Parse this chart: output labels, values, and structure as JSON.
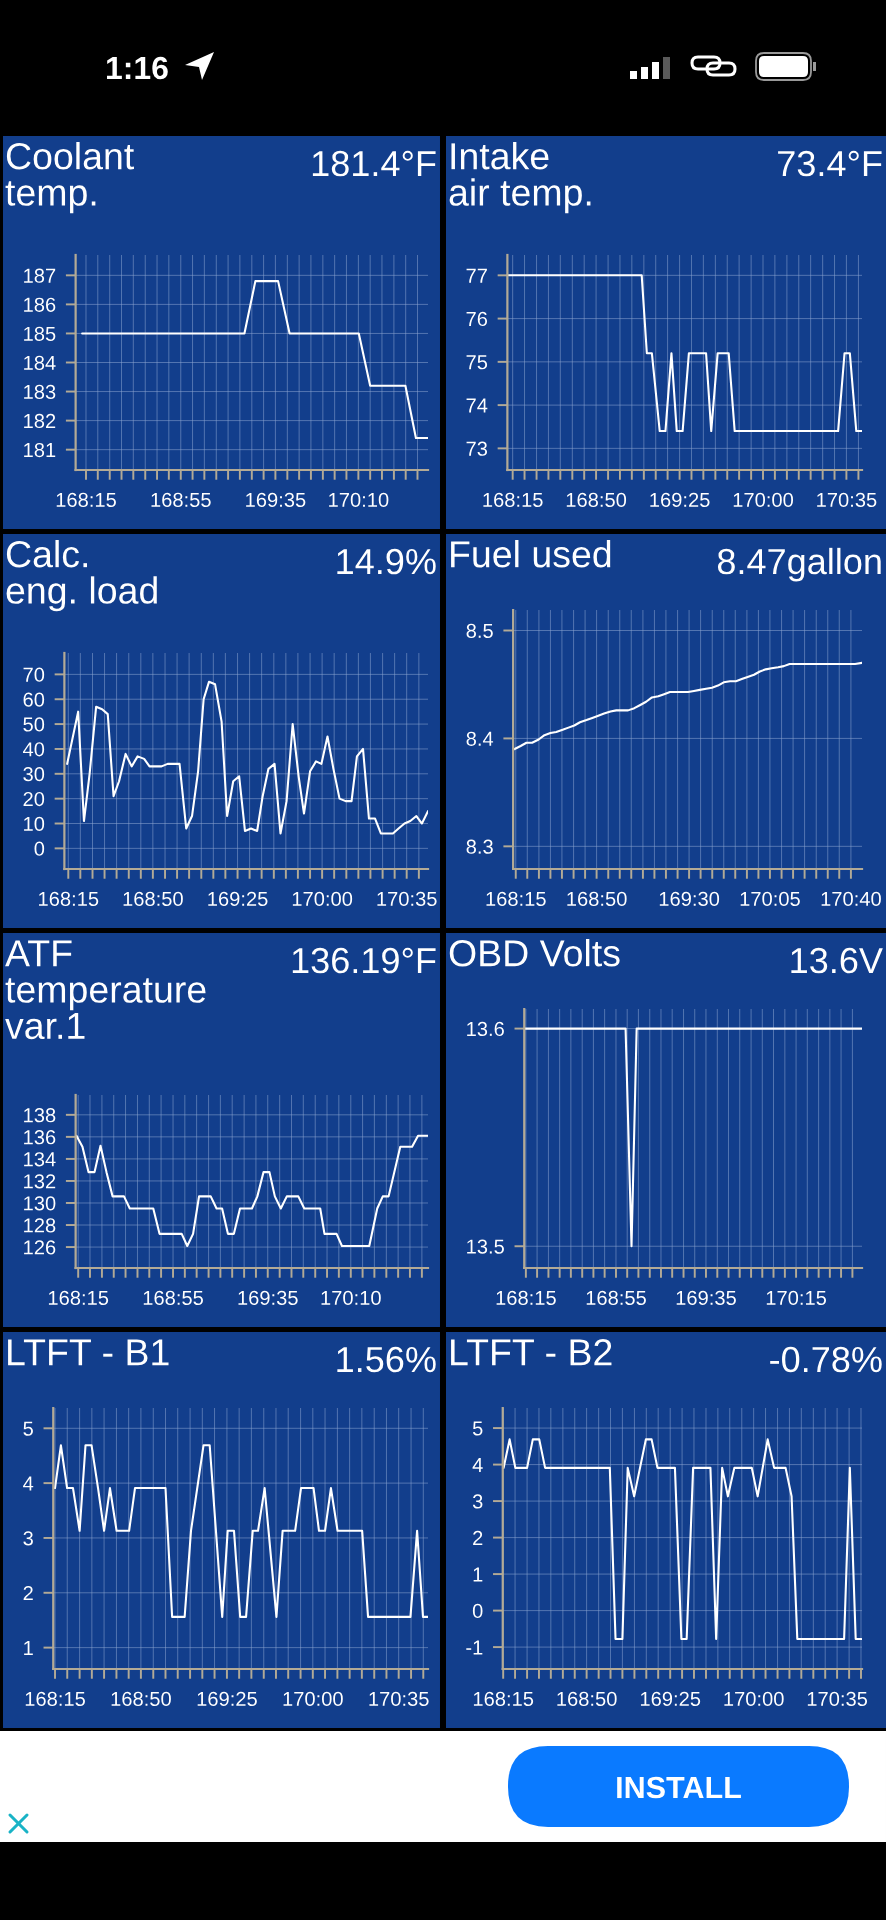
{
  "chart_data": [
    {
      "type": "other",
      "annotations": [
        "1:16"
      ]
    },
    {
      "type": "line",
      "title": "Coolant\ntemp.",
      "subtitle": "181.4°F",
      "color": "#ffffff",
      "line_style": "solid",
      "grid": true,
      "x": [
        168.223,
        169.365,
        169.442,
        169.602,
        169.683,
        170.17,
        170.25,
        170.498,
        170.572,
        170.657
      ],
      "values": [
        185,
        185,
        186.8,
        186.8,
        185,
        185,
        183.2,
        183.2,
        181.4,
        181.4
      ],
      "xlim": [
        168.177,
        170.657
      ],
      "ylim": [
        180.3,
        187.7
      ],
      "yticks": [
        181,
        182,
        183,
        184,
        185,
        186,
        187
      ],
      "xticks": [
        {
          "value": 168.25,
          "label": "168:15"
        },
        {
          "value": 168.333,
          "label": null
        },
        {
          "value": 168.417,
          "label": null
        },
        {
          "value": 168.5,
          "label": null
        },
        {
          "value": 168.583,
          "label": null
        },
        {
          "value": 168.667,
          "label": null
        },
        {
          "value": 168.75,
          "label": null
        },
        {
          "value": 168.833,
          "label": null
        },
        {
          "value": 168.917,
          "label": "168:55"
        },
        {
          "value": 169.0,
          "label": null
        },
        {
          "value": 169.083,
          "label": null
        },
        {
          "value": 169.167,
          "label": null
        },
        {
          "value": 169.25,
          "label": null
        },
        {
          "value": 169.333,
          "label": null
        },
        {
          "value": 169.417,
          "label": null
        },
        {
          "value": 169.5,
          "label": null
        },
        {
          "value": 169.583,
          "label": "169:35"
        },
        {
          "value": 169.667,
          "label": null
        },
        {
          "value": 169.75,
          "label": null
        },
        {
          "value": 169.833,
          "label": null
        },
        {
          "value": 169.917,
          "label": null
        },
        {
          "value": 170.0,
          "label": null
        },
        {
          "value": 170.083,
          "label": null
        },
        {
          "value": 170.167,
          "label": "170:10"
        },
        {
          "value": 170.25,
          "label": null
        },
        {
          "value": 170.333,
          "label": null
        },
        {
          "value": 170.417,
          "label": null
        },
        {
          "value": 170.5,
          "label": null
        },
        {
          "value": 170.583,
          "label": null
        }
      ]
    },
    {
      "type": "line",
      "title": "Intake\nair temp.",
      "subtitle": "73.4°F",
      "color": "#ffffff",
      "line_style": "solid",
      "grid": true,
      "x": [
        168.22,
        169.152,
        169.188,
        169.223,
        169.278,
        169.318,
        169.36,
        169.397,
        169.438,
        169.482,
        169.602,
        169.638,
        169.683,
        169.76,
        169.802,
        170.525,
        170.57,
        170.607,
        170.652,
        170.692
      ],
      "values": [
        77,
        77,
        75.2,
        75.2,
        73.4,
        73.4,
        75.2,
        73.4,
        73.4,
        75.2,
        75.2,
        73.4,
        75.2,
        75.2,
        73.4,
        73.4,
        75.2,
        75.2,
        73.4,
        73.4
      ],
      "xlim": [
        168.213,
        170.692
      ],
      "ylim": [
        72.5,
        77.47
      ],
      "yticks": [
        73,
        74,
        75,
        76,
        77
      ],
      "xticks": [
        {
          "value": 168.25,
          "label": "168:15"
        },
        {
          "value": 168.333,
          "label": null
        },
        {
          "value": 168.417,
          "label": null
        },
        {
          "value": 168.5,
          "label": null
        },
        {
          "value": 168.583,
          "label": null
        },
        {
          "value": 168.667,
          "label": null
        },
        {
          "value": 168.75,
          "label": null
        },
        {
          "value": 168.833,
          "label": "168:50"
        },
        {
          "value": 168.917,
          "label": null
        },
        {
          "value": 169.0,
          "label": null
        },
        {
          "value": 169.083,
          "label": null
        },
        {
          "value": 169.167,
          "label": null
        },
        {
          "value": 169.25,
          "label": null
        },
        {
          "value": 169.333,
          "label": null
        },
        {
          "value": 169.417,
          "label": "169:25"
        },
        {
          "value": 169.5,
          "label": null
        },
        {
          "value": 169.583,
          "label": null
        },
        {
          "value": 169.667,
          "label": null
        },
        {
          "value": 169.75,
          "label": null
        },
        {
          "value": 169.833,
          "label": null
        },
        {
          "value": 169.917,
          "label": null
        },
        {
          "value": 170.0,
          "label": "170:00"
        },
        {
          "value": 170.083,
          "label": null
        },
        {
          "value": 170.167,
          "label": null
        },
        {
          "value": 170.25,
          "label": null
        },
        {
          "value": 170.333,
          "label": null
        },
        {
          "value": 170.417,
          "label": null
        },
        {
          "value": 170.5,
          "label": null
        },
        {
          "value": 170.583,
          "label": "170:35"
        },
        {
          "value": 170.667,
          "label": null
        }
      ]
    },
    {
      "type": "line",
      "title": "Calc.\neng. load",
      "subtitle": "14.9%",
      "color": "#ffffff",
      "line_style": "solid",
      "grid": true,
      "x": [
        168.242,
        168.318,
        168.358,
        168.397,
        168.442,
        168.483,
        168.522,
        168.562,
        168.6,
        168.645,
        168.687,
        168.728,
        168.773,
        168.81,
        168.893,
        168.935,
        168.98,
        169.017,
        169.063,
        169.103,
        169.145,
        169.183,
        169.22,
        169.262,
        169.307,
        169.345,
        169.387,
        169.428,
        169.468,
        169.51,
        169.552,
        169.59,
        169.63,
        169.672,
        169.713,
        169.755,
        169.797,
        169.838,
        169.875,
        169.917,
        169.958,
        169.995,
        170.037,
        170.078,
        170.12,
        170.162,
        170.203,
        170.24,
        170.282,
        170.323,
        170.365,
        170.405,
        170.447,
        170.488,
        170.527,
        170.568,
        170.608,
        170.65,
        170.688,
        170.73
      ],
      "values": [
        34,
        55,
        11,
        30,
        57,
        56,
        54,
        21,
        27,
        38,
        33,
        37,
        36,
        33,
        33,
        34,
        34,
        34,
        8,
        13,
        31,
        60,
        67,
        66,
        51,
        13,
        27,
        29,
        7,
        8,
        7,
        21,
        32,
        34,
        6,
        19,
        50,
        29,
        14,
        31,
        35,
        34,
        45,
        32,
        20,
        19,
        19,
        37,
        40,
        12,
        12,
        6,
        6,
        6,
        8,
        10,
        11,
        13,
        10,
        15
      ],
      "xlim": [
        168.223,
        170.73
      ],
      "ylim": [
        -8.3,
        78.6
      ],
      "yticks": [
        0,
        10,
        20,
        30,
        40,
        50,
        60,
        70
      ],
      "xticks": [
        {
          "value": 168.25,
          "label": "168:15"
        },
        {
          "value": 168.333,
          "label": null
        },
        {
          "value": 168.417,
          "label": null
        },
        {
          "value": 168.5,
          "label": null
        },
        {
          "value": 168.583,
          "label": null
        },
        {
          "value": 168.667,
          "label": null
        },
        {
          "value": 168.75,
          "label": null
        },
        {
          "value": 168.833,
          "label": "168:50"
        },
        {
          "value": 168.917,
          "label": null
        },
        {
          "value": 169.0,
          "label": null
        },
        {
          "value": 169.083,
          "label": null
        },
        {
          "value": 169.167,
          "label": null
        },
        {
          "value": 169.25,
          "label": null
        },
        {
          "value": 169.333,
          "label": null
        },
        {
          "value": 169.417,
          "label": "169:25"
        },
        {
          "value": 169.5,
          "label": null
        },
        {
          "value": 169.583,
          "label": null
        },
        {
          "value": 169.667,
          "label": null
        },
        {
          "value": 169.75,
          "label": null
        },
        {
          "value": 169.833,
          "label": null
        },
        {
          "value": 169.917,
          "label": null
        },
        {
          "value": 170.0,
          "label": "170:00"
        },
        {
          "value": 170.083,
          "label": null
        },
        {
          "value": 170.167,
          "label": null
        },
        {
          "value": 170.25,
          "label": null
        },
        {
          "value": 170.333,
          "label": null
        },
        {
          "value": 170.417,
          "label": null
        },
        {
          "value": 170.5,
          "label": null
        },
        {
          "value": 170.583,
          "label": "170:35"
        },
        {
          "value": 170.667,
          "label": null
        }
      ]
    },
    {
      "type": "line",
      "title": "Fuel used",
      "subtitle": "8.47gallon",
      "color": "#ffffff",
      "line_style": "solid",
      "grid": true,
      "x": [
        168.238,
        168.285,
        168.327,
        168.368,
        168.415,
        168.457,
        168.5,
        168.542,
        168.588,
        168.63,
        168.672,
        168.713,
        168.76,
        168.802,
        168.845,
        168.887,
        168.933,
        168.975,
        169.06,
        169.105,
        169.148,
        169.19,
        169.232,
        169.278,
        169.32,
        169.362,
        169.493,
        169.535,
        169.577,
        169.623,
        169.665,
        169.708,
        169.75,
        169.795,
        169.838,
        169.88,
        169.922,
        169.968,
        170.01,
        170.053,
        170.095,
        170.142,
        170.183,
        170.225,
        170.697,
        170.747
      ],
      "values": [
        8.39,
        8.393,
        8.396,
        8.396,
        8.399,
        8.403,
        8.405,
        8.406,
        8.408,
        8.41,
        8.412,
        8.415,
        8.417,
        8.419,
        8.421,
        8.423,
        8.425,
        8.426,
        8.426,
        8.428,
        8.431,
        8.434,
        8.438,
        8.439,
        8.441,
        8.443,
        8.443,
        8.444,
        8.445,
        8.446,
        8.447,
        8.449,
        8.452,
        8.453,
        8.453,
        8.455,
        8.457,
        8.459,
        8.462,
        8.464,
        8.465,
        8.466,
        8.467,
        8.469,
        8.469,
        8.47
      ],
      "xlim": [
        168.231,
        170.747
      ],
      "ylim": [
        8.279,
        8.519
      ],
      "yticks": [
        8.3,
        8.4,
        8.5
      ],
      "xticks": [
        {
          "value": 168.25,
          "label": "168:15"
        },
        {
          "value": 168.333,
          "label": null
        },
        {
          "value": 168.417,
          "label": null
        },
        {
          "value": 168.5,
          "label": null
        },
        {
          "value": 168.583,
          "label": null
        },
        {
          "value": 168.667,
          "label": null
        },
        {
          "value": 168.75,
          "label": null
        },
        {
          "value": 168.833,
          "label": "168:50"
        },
        {
          "value": 168.917,
          "label": null
        },
        {
          "value": 169.0,
          "label": null
        },
        {
          "value": 169.083,
          "label": null
        },
        {
          "value": 169.167,
          "label": null
        },
        {
          "value": 169.25,
          "label": null
        },
        {
          "value": 169.333,
          "label": null
        },
        {
          "value": 169.417,
          "label": null
        },
        {
          "value": 169.5,
          "label": "169:30"
        },
        {
          "value": 169.583,
          "label": null
        },
        {
          "value": 169.667,
          "label": null
        },
        {
          "value": 169.75,
          "label": null
        },
        {
          "value": 169.833,
          "label": null
        },
        {
          "value": 169.917,
          "label": null
        },
        {
          "value": 170.0,
          "label": null
        },
        {
          "value": 170.083,
          "label": "170:05"
        },
        {
          "value": 170.167,
          "label": null
        },
        {
          "value": 170.25,
          "label": null
        },
        {
          "value": 170.333,
          "label": null
        },
        {
          "value": 170.417,
          "label": null
        },
        {
          "value": 170.5,
          "label": null
        },
        {
          "value": 170.583,
          "label": null
        },
        {
          "value": 170.667,
          "label": "170:40"
        }
      ]
    },
    {
      "type": "line",
      "title": "ATF\ntemperature\nvar.1",
      "subtitle": "136.19°F",
      "color": "#ffffff",
      "line_style": "solid",
      "grid": true,
      "x": [
        168.238,
        168.28,
        168.323,
        168.365,
        168.407,
        168.449,
        168.492,
        168.572,
        168.613,
        168.778,
        168.822,
        168.978,
        169.017,
        169.058,
        169.1,
        169.182,
        169.223,
        169.262,
        169.303,
        169.345,
        169.388,
        169.472,
        169.51,
        169.553,
        169.595,
        169.633,
        169.675,
        169.717,
        169.798,
        169.84,
        169.952,
        169.982,
        170.067,
        170.105,
        170.297,
        170.353,
        170.392,
        170.433,
        170.515,
        170.598,
        170.64,
        170.71
      ],
      "values": [
        136.1,
        135.1,
        132.8,
        132.8,
        135.2,
        132.8,
        130.6,
        130.6,
        129.5,
        129.5,
        127.2,
        127.2,
        126.1,
        127.2,
        130.6,
        130.6,
        129.5,
        129.5,
        127.2,
        127.2,
        129.5,
        129.5,
        130.6,
        132.8,
        132.8,
        130.6,
        129.5,
        130.6,
        130.6,
        129.5,
        129.5,
        127.2,
        127.2,
        126.1,
        126.1,
        129.5,
        130.6,
        130.6,
        135.1,
        135.1,
        136.1,
        136.1
      ],
      "xlim": [
        168.232,
        170.71
      ],
      "ylim": [
        124.1,
        139.8
      ],
      "yticks": [
        126,
        128,
        130,
        132,
        134,
        136,
        138
      ],
      "xticks": [
        {
          "value": 168.25,
          "label": "168:15"
        },
        {
          "value": 168.333,
          "label": null
        },
        {
          "value": 168.417,
          "label": null
        },
        {
          "value": 168.5,
          "label": null
        },
        {
          "value": 168.583,
          "label": null
        },
        {
          "value": 168.667,
          "label": null
        },
        {
          "value": 168.75,
          "label": null
        },
        {
          "value": 168.833,
          "label": null
        },
        {
          "value": 168.917,
          "label": "168:55"
        },
        {
          "value": 169.0,
          "label": null
        },
        {
          "value": 169.083,
          "label": null
        },
        {
          "value": 169.167,
          "label": null
        },
        {
          "value": 169.25,
          "label": null
        },
        {
          "value": 169.333,
          "label": null
        },
        {
          "value": 169.417,
          "label": null
        },
        {
          "value": 169.5,
          "label": null
        },
        {
          "value": 169.583,
          "label": "169:35"
        },
        {
          "value": 169.667,
          "label": null
        },
        {
          "value": 169.75,
          "label": null
        },
        {
          "value": 169.833,
          "label": null
        },
        {
          "value": 169.917,
          "label": null
        },
        {
          "value": 170.0,
          "label": null
        },
        {
          "value": 170.083,
          "label": null
        },
        {
          "value": 170.167,
          "label": "170:10"
        },
        {
          "value": 170.25,
          "label": null
        },
        {
          "value": 170.333,
          "label": null
        },
        {
          "value": 170.417,
          "label": null
        },
        {
          "value": 170.5,
          "label": null
        },
        {
          "value": 170.583,
          "label": null
        },
        {
          "value": 170.667,
          "label": null
        }
      ]
    },
    {
      "type": "line",
      "title": "OBD Volts",
      "subtitle": "13.6V",
      "color": "#ffffff",
      "line_style": "solid",
      "grid": true,
      "x": [
        168.238,
        168.988,
        169.032,
        169.07,
        170.738
      ],
      "values": [
        13.6,
        13.6,
        13.5,
        13.6,
        13.6
      ],
      "xlim": [
        168.238,
        170.738
      ],
      "ylim": [
        13.49,
        13.609
      ],
      "yticks": [
        13.5,
        13.6
      ],
      "xticks": [
        {
          "value": 168.25,
          "label": "168:15"
        },
        {
          "value": 168.333,
          "label": null
        },
        {
          "value": 168.417,
          "label": null
        },
        {
          "value": 168.5,
          "label": null
        },
        {
          "value": 168.583,
          "label": null
        },
        {
          "value": 168.667,
          "label": null
        },
        {
          "value": 168.75,
          "label": null
        },
        {
          "value": 168.833,
          "label": null
        },
        {
          "value": 168.917,
          "label": "168:55"
        },
        {
          "value": 169.0,
          "label": null
        },
        {
          "value": 169.083,
          "label": null
        },
        {
          "value": 169.167,
          "label": null
        },
        {
          "value": 169.25,
          "label": null
        },
        {
          "value": 169.333,
          "label": null
        },
        {
          "value": 169.417,
          "label": null
        },
        {
          "value": 169.5,
          "label": null
        },
        {
          "value": 169.583,
          "label": "169:35"
        },
        {
          "value": 169.667,
          "label": null
        },
        {
          "value": 169.75,
          "label": null
        },
        {
          "value": 169.833,
          "label": null
        },
        {
          "value": 169.917,
          "label": null
        },
        {
          "value": 170.0,
          "label": null
        },
        {
          "value": 170.083,
          "label": null
        },
        {
          "value": 170.167,
          "label": null
        },
        {
          "value": 170.25,
          "label": "170:15"
        },
        {
          "value": 170.333,
          "label": null
        },
        {
          "value": 170.417,
          "label": null
        },
        {
          "value": 170.5,
          "label": null
        },
        {
          "value": 170.583,
          "label": null
        },
        {
          "value": 170.667,
          "label": null
        }
      ]
    },
    {
      "type": "line",
      "title": "LTFT - B1",
      "subtitle": "1.56%",
      "color": "#ffffff",
      "line_style": "solid",
      "grid": true,
      "x": [
        168.25,
        168.29,
        168.332,
        168.372,
        168.417,
        168.457,
        168.498,
        168.542,
        168.583,
        168.623,
        168.668,
        168.753,
        168.793,
        169.0,
        169.045,
        169.13,
        169.173,
        169.258,
        169.3,
        169.385,
        169.422,
        169.465,
        169.507,
        169.547,
        169.592,
        169.628,
        169.673,
        169.753,
        169.795,
        169.88,
        169.92,
        170.005,
        170.042,
        170.083,
        170.123,
        170.168,
        170.335,
        170.375,
        170.663,
        170.708,
        170.748,
        170.782
      ],
      "values": [
        3.91,
        4.69,
        3.91,
        3.91,
        3.13,
        4.69,
        4.69,
        3.91,
        3.13,
        3.91,
        3.13,
        3.13,
        3.91,
        3.91,
        1.56,
        1.56,
        3.13,
        4.69,
        4.69,
        1.56,
        3.13,
        3.13,
        1.56,
        1.56,
        3.13,
        3.13,
        3.91,
        1.56,
        3.13,
        3.13,
        3.91,
        3.91,
        3.13,
        3.13,
        3.91,
        3.13,
        3.13,
        1.56,
        1.56,
        3.13,
        1.56,
        1.56
      ],
      "xlim": [
        168.238,
        170.782
      ],
      "ylim": [
        0.61,
        5.37
      ],
      "yticks": [
        1,
        2,
        3,
        4,
        5
      ],
      "xticks": [
        {
          "value": 168.25,
          "label": "168:15"
        },
        {
          "value": 168.333,
          "label": null
        },
        {
          "value": 168.417,
          "label": null
        },
        {
          "value": 168.5,
          "label": null
        },
        {
          "value": 168.583,
          "label": null
        },
        {
          "value": 168.667,
          "label": null
        },
        {
          "value": 168.75,
          "label": null
        },
        {
          "value": 168.833,
          "label": "168:50"
        },
        {
          "value": 168.917,
          "label": null
        },
        {
          "value": 169.0,
          "label": null
        },
        {
          "value": 169.083,
          "label": null
        },
        {
          "value": 169.167,
          "label": null
        },
        {
          "value": 169.25,
          "label": null
        },
        {
          "value": 169.333,
          "label": null
        },
        {
          "value": 169.417,
          "label": "169:25"
        },
        {
          "value": 169.5,
          "label": null
        },
        {
          "value": 169.583,
          "label": null
        },
        {
          "value": 169.667,
          "label": null
        },
        {
          "value": 169.75,
          "label": null
        },
        {
          "value": 169.833,
          "label": null
        },
        {
          "value": 169.917,
          "label": null
        },
        {
          "value": 170.0,
          "label": "170:00"
        },
        {
          "value": 170.083,
          "label": null
        },
        {
          "value": 170.167,
          "label": null
        },
        {
          "value": 170.25,
          "label": null
        },
        {
          "value": 170.333,
          "label": null
        },
        {
          "value": 170.417,
          "label": null
        },
        {
          "value": 170.5,
          "label": null
        },
        {
          "value": 170.583,
          "label": "170:35"
        },
        {
          "value": 170.667,
          "label": null
        },
        {
          "value": 170.75,
          "label": null
        }
      ]
    },
    {
      "type": "line",
      "title": "LTFT - B2",
      "subtitle": "-0.78%",
      "color": "#ffffff",
      "line_style": "solid",
      "grid": true,
      "x": [
        168.253,
        168.295,
        168.335,
        168.417,
        168.457,
        168.502,
        168.543,
        168.995,
        169.035,
        169.083,
        169.12,
        169.165,
        169.247,
        169.287,
        169.328,
        169.45,
        169.495,
        169.532,
        169.577,
        169.698,
        169.738,
        169.78,
        169.82,
        169.865,
        169.987,
        170.028,
        170.098,
        170.143,
        170.223,
        170.265,
        170.305,
        170.632,
        170.672,
        170.713,
        170.753
      ],
      "values": [
        3.91,
        4.69,
        3.91,
        3.91,
        4.69,
        4.69,
        3.91,
        3.91,
        -0.78,
        -0.78,
        3.91,
        3.13,
        4.69,
        4.69,
        3.91,
        3.91,
        -0.78,
        -0.78,
        3.91,
        3.91,
        -0.78,
        3.91,
        3.13,
        3.91,
        3.91,
        3.13,
        4.69,
        3.91,
        3.91,
        3.13,
        -0.78,
        -0.78,
        3.91,
        -0.78,
        -0.78
      ],
      "xlim": [
        168.247,
        170.757
      ],
      "ylim": [
        -1.6,
        5.55
      ],
      "yticks": [
        -1,
        0,
        1,
        2,
        3,
        4,
        5
      ],
      "xticks": [
        {
          "value": 168.25,
          "label": "168:15"
        },
        {
          "value": 168.333,
          "label": null
        },
        {
          "value": 168.417,
          "label": null
        },
        {
          "value": 168.5,
          "label": null
        },
        {
          "value": 168.583,
          "label": null
        },
        {
          "value": 168.667,
          "label": null
        },
        {
          "value": 168.75,
          "label": null
        },
        {
          "value": 168.833,
          "label": "168:50"
        },
        {
          "value": 168.917,
          "label": null
        },
        {
          "value": 169.0,
          "label": null
        },
        {
          "value": 169.083,
          "label": null
        },
        {
          "value": 169.167,
          "label": null
        },
        {
          "value": 169.25,
          "label": null
        },
        {
          "value": 169.333,
          "label": null
        },
        {
          "value": 169.417,
          "label": "169:25"
        },
        {
          "value": 169.5,
          "label": null
        },
        {
          "value": 169.583,
          "label": null
        },
        {
          "value": 169.667,
          "label": null
        },
        {
          "value": 169.75,
          "label": null
        },
        {
          "value": 169.833,
          "label": null
        },
        {
          "value": 169.917,
          "label": null
        },
        {
          "value": 170.0,
          "label": "170:00"
        },
        {
          "value": 170.083,
          "label": null
        },
        {
          "value": 170.167,
          "label": null
        },
        {
          "value": 170.25,
          "label": null
        },
        {
          "value": 170.333,
          "label": null
        },
        {
          "value": 170.417,
          "label": null
        },
        {
          "value": 170.5,
          "label": null
        },
        {
          "value": 170.583,
          "label": "170:35"
        },
        {
          "value": 170.667,
          "label": null
        },
        {
          "value": 170.75,
          "label": null
        }
      ]
    },
    {
      "type": "other",
      "annotations": [
        "INSTALL"
      ]
    }
  ]
}
